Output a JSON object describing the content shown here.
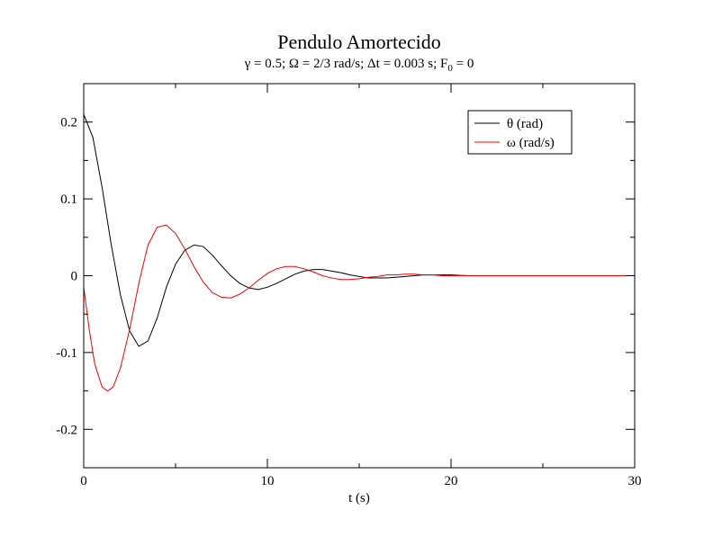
{
  "chart_data": {
    "type": "line",
    "title": "Pendulo Amortecido",
    "subtitle": {
      "gamma_sym": "γ",
      "rest1": " = 0.5; Ω = 2/3 rad/s; Δt = 0.003 s; F",
      "sub0": "0",
      "rest2": " = 0"
    },
    "xlabel": "t (s)",
    "ylabel": "",
    "xlim": [
      0,
      30
    ],
    "ylim": [
      -0.25,
      0.25
    ],
    "x_ticks": [
      0,
      10,
      20,
      30
    ],
    "x_tick_labels": [
      "0",
      "10",
      "20",
      "30"
    ],
    "y_ticks": [
      -0.2,
      -0.1,
      0,
      0.1,
      0.2
    ],
    "y_tick_labels": [
      "-0.2",
      "-0.1",
      "0",
      "0.1",
      "0.2"
    ],
    "grid": false,
    "legend_position": "top-right",
    "colors": {
      "theta": "#000000",
      "omega": "#ff0000",
      "frame": "#000000"
    },
    "series": [
      {
        "name": "θ (rad)",
        "color": "#000000",
        "x": [
          0,
          0.5,
          1.0,
          1.5,
          2.0,
          2.5,
          3.0,
          3.5,
          4.0,
          4.5,
          5.0,
          5.5,
          6.0,
          6.5,
          7.0,
          7.5,
          8.0,
          8.5,
          9.0,
          9.5,
          10.0,
          10.5,
          11.0,
          11.5,
          12.0,
          12.5,
          13.0,
          13.5,
          14.0,
          14.5,
          15.0,
          15.5,
          16.0,
          16.5,
          17.0,
          17.5,
          18.0,
          18.5,
          19.0,
          19.5,
          20.0,
          21.0,
          22.0,
          23.0,
          24.0,
          25.0,
          26.0,
          27.0,
          28.0,
          29.0,
          30.0
        ],
        "y": [
          0.21,
          0.18,
          0.115,
          0.04,
          -0.025,
          -0.072,
          -0.092,
          -0.085,
          -0.055,
          -0.015,
          0.015,
          0.033,
          0.04,
          0.038,
          0.027,
          0.013,
          0.0,
          -0.01,
          -0.016,
          -0.018,
          -0.015,
          -0.01,
          -0.004,
          0.002,
          0.006,
          0.008,
          0.008,
          0.006,
          0.004,
          0.001,
          -0.001,
          -0.003,
          -0.003,
          -0.003,
          -0.002,
          -0.001,
          0.0,
          0.001,
          0.001,
          0.001,
          0.001,
          0.0,
          0.0,
          0.0,
          0.0,
          0.0,
          0.0,
          0.0,
          0.0,
          0.0,
          0.0
        ]
      },
      {
        "name": "ω (rad/s)",
        "color": "#ff0000",
        "x": [
          0,
          0.3,
          0.6,
          1.0,
          1.3,
          1.6,
          2.0,
          2.5,
          3.0,
          3.5,
          4.0,
          4.5,
          5.0,
          5.5,
          6.0,
          6.5,
          7.0,
          7.5,
          8.0,
          8.5,
          9.0,
          9.5,
          10.0,
          10.5,
          11.0,
          11.5,
          12.0,
          12.5,
          13.0,
          13.5,
          14.0,
          14.5,
          15.0,
          15.5,
          16.0,
          16.5,
          17.0,
          17.5,
          18.0,
          18.5,
          19.0,
          19.5,
          20.0,
          21.0,
          22.0,
          23.0,
          24.0,
          25.0,
          26.0,
          27.0,
          28.0,
          29.0,
          30.0
        ],
        "y": [
          -0.015,
          -0.07,
          -0.115,
          -0.145,
          -0.15,
          -0.145,
          -0.12,
          -0.07,
          -0.01,
          0.04,
          0.063,
          0.066,
          0.055,
          0.035,
          0.012,
          -0.008,
          -0.022,
          -0.028,
          -0.029,
          -0.024,
          -0.016,
          -0.006,
          0.003,
          0.009,
          0.012,
          0.012,
          0.009,
          0.005,
          0.0,
          -0.003,
          -0.005,
          -0.005,
          -0.004,
          -0.002,
          -0.001,
          0.001,
          0.001,
          0.002,
          0.002,
          0.001,
          0.001,
          0.0,
          0.0,
          0.0,
          0.0,
          0.0,
          0.0,
          0.0,
          0.0,
          0.0,
          0.0,
          0.0,
          0.0
        ]
      }
    ]
  }
}
